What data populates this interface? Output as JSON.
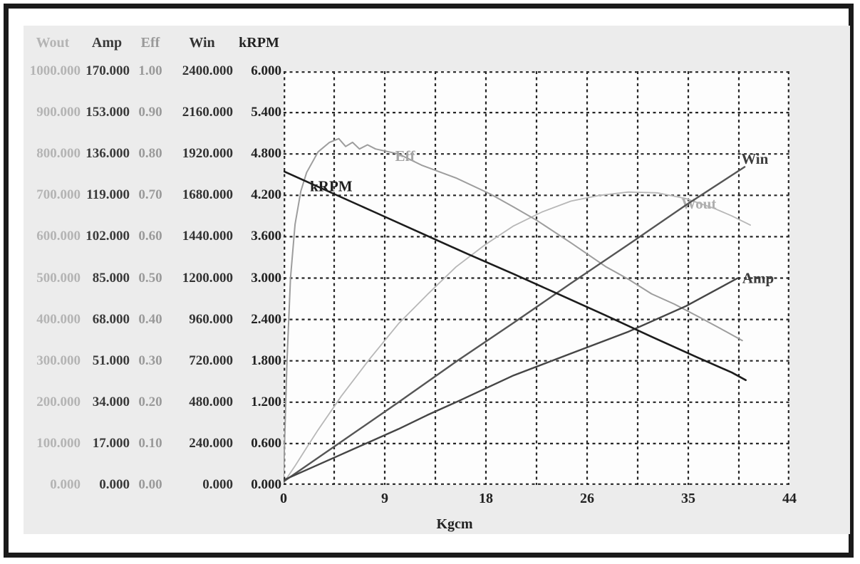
{
  "window": {
    "type": "motor-performance-test-report"
  },
  "colors": {
    "frame": "#1a1a1a",
    "panel_bg": "#ececec",
    "plot_bg": "#fdfdfd",
    "grid": "#262626",
    "tick_text": "#222222"
  },
  "table": {
    "columns": [
      {
        "key": "wout",
        "label": "Wout",
        "header_color": "#b4b4b4",
        "value_color": "#b4b4b4"
      },
      {
        "key": "amp",
        "label": "Amp",
        "header_color": "#3a3a3a",
        "value_color": "#3a3a3a"
      },
      {
        "key": "eff",
        "label": "Eff",
        "header_color": "#9a9a9a",
        "value_color": "#9a9a9a"
      },
      {
        "key": "win",
        "label": "Win",
        "header_color": "#333333",
        "value_color": "#333333"
      },
      {
        "key": "krpm",
        "label": "kRPM",
        "header_color": "#222222",
        "value_color": "#222222"
      }
    ],
    "rows": [
      [
        "1000.000",
        "170.000",
        "1.00",
        "2400.000",
        "6.000"
      ],
      [
        "900.000",
        "153.000",
        "0.90",
        "2160.000",
        "5.400"
      ],
      [
        "800.000",
        "136.000",
        "0.80",
        "1920.000",
        "4.800"
      ],
      [
        "700.000",
        "119.000",
        "0.70",
        "1680.000",
        "4.200"
      ],
      [
        "600.000",
        "102.000",
        "0.60",
        "1440.000",
        "3.600"
      ],
      [
        "500.000",
        "85.000",
        "0.50",
        "1200.000",
        "3.000"
      ],
      [
        "400.000",
        "68.000",
        "0.40",
        "960.000",
        "2.400"
      ],
      [
        "300.000",
        "51.000",
        "0.30",
        "720.000",
        "1.800"
      ],
      [
        "200.000",
        "34.000",
        "0.20",
        "480.000",
        "1.200"
      ],
      [
        "100.000",
        "17.000",
        "0.10",
        "240.000",
        "0.600"
      ],
      [
        "0.000",
        "0.000",
        "0.00",
        "0.000",
        "0.000"
      ]
    ]
  },
  "chart_data": {
    "type": "line",
    "xlabel": "Kgcm",
    "x_range": [
      0,
      44
    ],
    "grid_divisions": 10,
    "grid_style": "dashed",
    "x_ticks": [
      {
        "label": "0",
        "grid": 0
      },
      {
        "label": "9",
        "grid": 2
      },
      {
        "label": "18",
        "grid": 4
      },
      {
        "label": "26",
        "grid": 6
      },
      {
        "label": "35",
        "grid": 8
      },
      {
        "label": "44",
        "grid": 10
      }
    ],
    "axes": [
      {
        "name": "Wout",
        "min": 0,
        "max": 1000,
        "step": 100
      },
      {
        "name": "Amp",
        "min": 0,
        "max": 170,
        "step": 17
      },
      {
        "name": "Eff",
        "min": 0,
        "max": 1.0,
        "step": 0.1
      },
      {
        "name": "Win",
        "min": 0,
        "max": 2400,
        "step": 240
      },
      {
        "name": "kRPM",
        "min": 0,
        "max": 6.0,
        "step": 0.6
      }
    ],
    "series": [
      {
        "name": "Wout",
        "axis_max": 1000,
        "color": "#b7b7b7",
        "label_color": "#aeaeae",
        "width": 1.8,
        "label": {
          "t": 34.6,
          "v": 668
        },
        "points": [
          [
            0,
            5
          ],
          [
            1,
            46
          ],
          [
            2,
            90
          ],
          [
            3,
            133
          ],
          [
            5,
            214
          ],
          [
            7.5,
            305
          ],
          [
            10,
            390
          ],
          [
            12.5,
            460
          ],
          [
            15,
            527
          ],
          [
            17.5,
            580
          ],
          [
            20,
            626
          ],
          [
            22.5,
            660
          ],
          [
            25,
            686
          ],
          [
            27.5,
            700
          ],
          [
            30,
            708
          ],
          [
            32.5,
            706
          ],
          [
            35,
            692
          ],
          [
            37.5,
            668
          ],
          [
            39,
            650
          ],
          [
            40.6,
            628
          ]
        ]
      },
      {
        "name": "Eff",
        "axis_max": 1,
        "color": "#9d9d9d",
        "label_color": "#a5a5a5",
        "width": 2,
        "label": {
          "t": 9.7,
          "v": 0.783
        },
        "points": [
          [
            0,
            0.02
          ],
          [
            0.3,
            0.3
          ],
          [
            0.6,
            0.5
          ],
          [
            1,
            0.63
          ],
          [
            1.5,
            0.71
          ],
          [
            2,
            0.755
          ],
          [
            3,
            0.805
          ],
          [
            4,
            0.828
          ],
          [
            4.8,
            0.837
          ],
          [
            5.4,
            0.818
          ],
          [
            6,
            0.828
          ],
          [
            6.6,
            0.812
          ],
          [
            7.3,
            0.822
          ],
          [
            8,
            0.812
          ],
          [
            9,
            0.806
          ],
          [
            10,
            0.8
          ],
          [
            12,
            0.773
          ],
          [
            15,
            0.742
          ],
          [
            18,
            0.703
          ],
          [
            20,
            0.672
          ],
          [
            22,
            0.64
          ],
          [
            25,
            0.585
          ],
          [
            28,
            0.528
          ],
          [
            30,
            0.497
          ],
          [
            32,
            0.462
          ],
          [
            34,
            0.437
          ],
          [
            36,
            0.408
          ],
          [
            38,
            0.378
          ],
          [
            39.9,
            0.349
          ]
        ]
      },
      {
        "name": "Win",
        "axis_max": 2400,
        "color": "#555555",
        "label_color": "#3d3d3d",
        "width": 2.4,
        "label": {
          "t": 39.8,
          "v": 1862
        },
        "points": [
          [
            0,
            20
          ],
          [
            5,
            250
          ],
          [
            10,
            480
          ],
          [
            15,
            715
          ],
          [
            20,
            940
          ],
          [
            25,
            1170
          ],
          [
            30,
            1395
          ],
          [
            35,
            1624
          ],
          [
            40.1,
            1845
          ]
        ]
      },
      {
        "name": "Amp",
        "axis_max": 170,
        "color": "#454545",
        "label_color": "#3d3d3d",
        "width": 2.4,
        "label": {
          "t": 39.9,
          "v": 83
        },
        "points": [
          [
            0,
            2
          ],
          [
            5,
            12.5
          ],
          [
            10,
            23
          ],
          [
            12.5,
            28.7
          ],
          [
            15,
            34
          ],
          [
            20,
            45
          ],
          [
            25,
            54
          ],
          [
            30,
            63
          ],
          [
            35,
            73.5
          ],
          [
            39.5,
            85
          ]
        ]
      },
      {
        "name": "kRPM",
        "axis_max": 6,
        "color": "#1c1c1c",
        "label_color": "#1f1f1f",
        "width": 2.6,
        "label": {
          "t": 2.3,
          "v": 4.26
        },
        "points": [
          [
            0,
            4.55
          ],
          [
            4,
            4.25
          ],
          [
            8,
            3.95
          ],
          [
            12,
            3.65
          ],
          [
            16,
            3.35
          ],
          [
            20,
            3.06
          ],
          [
            24,
            2.76
          ],
          [
            28,
            2.46
          ],
          [
            32,
            2.15
          ],
          [
            36,
            1.85
          ],
          [
            39,
            1.63
          ],
          [
            40.2,
            1.52
          ]
        ]
      }
    ]
  }
}
